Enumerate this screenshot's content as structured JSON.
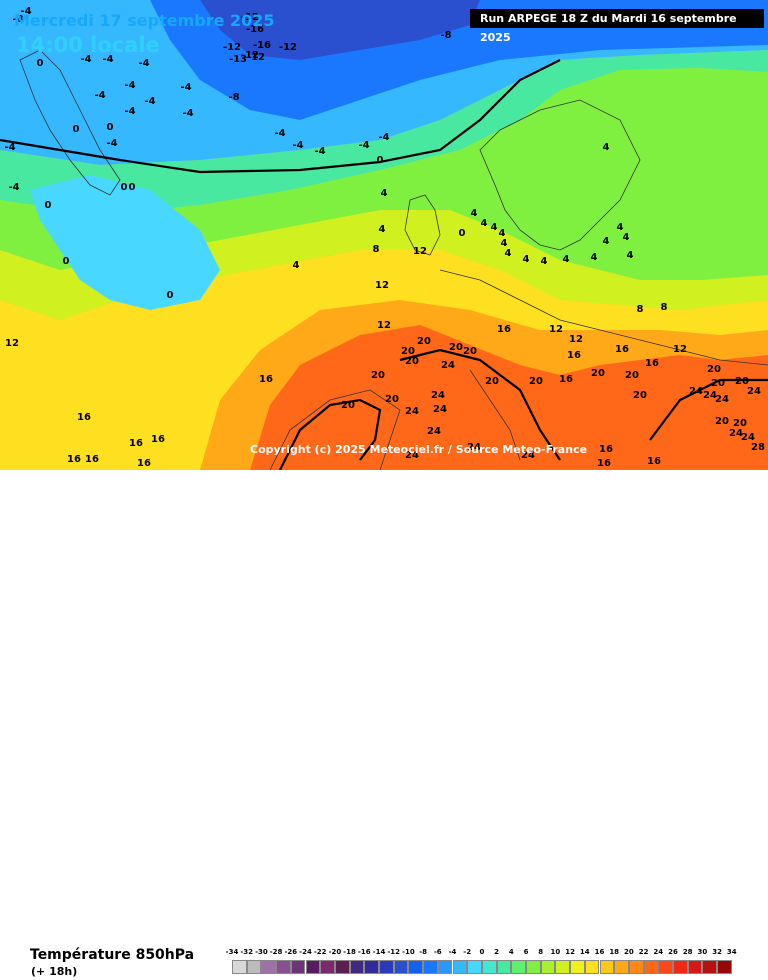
{
  "header": {
    "date": "Mercredi 17 septembre 2025",
    "time": "14:00 locale",
    "run": "Run ARPEGE 18 Z du Mardi 16 septembre 2025"
  },
  "copyright": "Copyright (c) 2025 Meteociel.fr / Source Meteo-France",
  "footer": {
    "variable": "Température 850hPa",
    "lead": "(+ 18h)"
  },
  "legend": {
    "labels": [
      "-34",
      "-32",
      "-30",
      "-28",
      "-26",
      "-24",
      "-22",
      "-20",
      "-18",
      "-16",
      "-14",
      "-12",
      "-10",
      "-8",
      "-6",
      "-4",
      "-2",
      "0",
      "2",
      "4",
      "6",
      "8",
      "10",
      "12",
      "14",
      "16",
      "18",
      "20",
      "22",
      "24",
      "26",
      "28",
      "30",
      "32",
      "34"
    ],
    "colors": [
      "#d8d8d8",
      "#bcbcbc",
      "#a070a8",
      "#885090",
      "#6e3478",
      "#581c60",
      "#7a2a6a",
      "#5a1e50",
      "#3e2a80",
      "#302a9a",
      "#2a3ab8",
      "#2a50d0",
      "#1460f0",
      "#1a78ff",
      "#2a98ff",
      "#36b8ff",
      "#48d8ff",
      "#44e8d0",
      "#48e8a0",
      "#60f070",
      "#80f040",
      "#a8f030",
      "#d0f020",
      "#f0f020",
      "#ffe020",
      "#ffc818",
      "#ffa818",
      "#ff8818",
      "#ff6818",
      "#ff4818",
      "#f02818",
      "#d81818",
      "#b81010",
      "#980808",
      "#700000"
    ]
  },
  "map_labels": [
    {
      "t": "-12"
    },
    {
      "t": "-16"
    },
    {
      "t": "-12"
    },
    {
      "t": "-12"
    },
    {
      "t": "-16"
    },
    {
      "t": "-12"
    },
    {
      "t": "-13"
    },
    {
      "t": "-12"
    },
    {
      "t": "-8"
    },
    {
      "t": "-4"
    },
    {
      "t": "-8"
    },
    {
      "t": "-4"
    },
    {
      "t": "-4"
    },
    {
      "t": "-4"
    },
    {
      "t": "-4"
    },
    {
      "t": "-4"
    },
    {
      "t": "-4"
    },
    {
      "t": "-4"
    },
    {
      "t": "-8"
    },
    {
      "t": "-4"
    },
    {
      "t": "-4"
    },
    {
      "t": "-4"
    },
    {
      "t": "-4"
    },
    {
      "t": "-4"
    },
    {
      "t": "-4"
    },
    {
      "t": "-4"
    },
    {
      "t": "-4"
    },
    {
      "t": "-4"
    },
    {
      "t": "-4"
    },
    {
      "t": "0"
    },
    {
      "t": "0"
    },
    {
      "t": "0"
    },
    {
      "t": "0"
    },
    {
      "t": "0"
    },
    {
      "t": "0"
    },
    {
      "t": "0"
    },
    {
      "t": "0"
    },
    {
      "t": "0"
    },
    {
      "t": "0"
    },
    {
      "t": "4"
    },
    {
      "t": "4"
    },
    {
      "t": "4"
    },
    {
      "t": "4"
    },
    {
      "t": "4"
    },
    {
      "t": "4"
    },
    {
      "t": "4"
    },
    {
      "t": "4"
    },
    {
      "t": "4"
    },
    {
      "t": "4"
    },
    {
      "t": "4"
    },
    {
      "t": "4"
    },
    {
      "t": "4"
    },
    {
      "t": "4"
    },
    {
      "t": "4"
    },
    {
      "t": "4"
    },
    {
      "t": "4"
    },
    {
      "t": "4"
    },
    {
      "t": "8"
    },
    {
      "t": "8"
    },
    {
      "t": "8"
    },
    {
      "t": "12"
    },
    {
      "t": "12"
    },
    {
      "t": "12"
    },
    {
      "t": "12"
    },
    {
      "t": "12"
    },
    {
      "t": "12"
    },
    {
      "t": "12"
    },
    {
      "t": "16"
    },
    {
      "t": "16"
    },
    {
      "t": "16"
    },
    {
      "t": "16"
    },
    {
      "t": "16"
    },
    {
      "t": "16"
    },
    {
      "t": "16"
    },
    {
      "t": "16"
    },
    {
      "t": "16"
    },
    {
      "t": "16"
    },
    {
      "t": "16"
    },
    {
      "t": "16"
    },
    {
      "t": "16"
    },
    {
      "t": "16"
    },
    {
      "t": "16"
    },
    {
      "t": "20"
    },
    {
      "t": "20"
    },
    {
      "t": "20"
    },
    {
      "t": "20"
    },
    {
      "t": "20"
    },
    {
      "t": "20"
    },
    {
      "t": "20"
    },
    {
      "t": "20"
    },
    {
      "t": "20"
    },
    {
      "t": "20"
    },
    {
      "t": "20"
    },
    {
      "t": "20"
    },
    {
      "t": "20"
    },
    {
      "t": "20"
    },
    {
      "t": "20"
    },
    {
      "t": "20"
    },
    {
      "t": "20"
    },
    {
      "t": "20"
    },
    {
      "t": "24"
    },
    {
      "t": "24"
    },
    {
      "t": "24"
    },
    {
      "t": "24"
    },
    {
      "t": "24"
    },
    {
      "t": "24"
    },
    {
      "t": "24"
    },
    {
      "t": "24"
    },
    {
      "t": "24"
    },
    {
      "t": "24"
    },
    {
      "t": "24"
    },
    {
      "t": "24"
    },
    {
      "t": "24"
    },
    {
      "t": "24"
    },
    {
      "t": "28"
    }
  ]
}
